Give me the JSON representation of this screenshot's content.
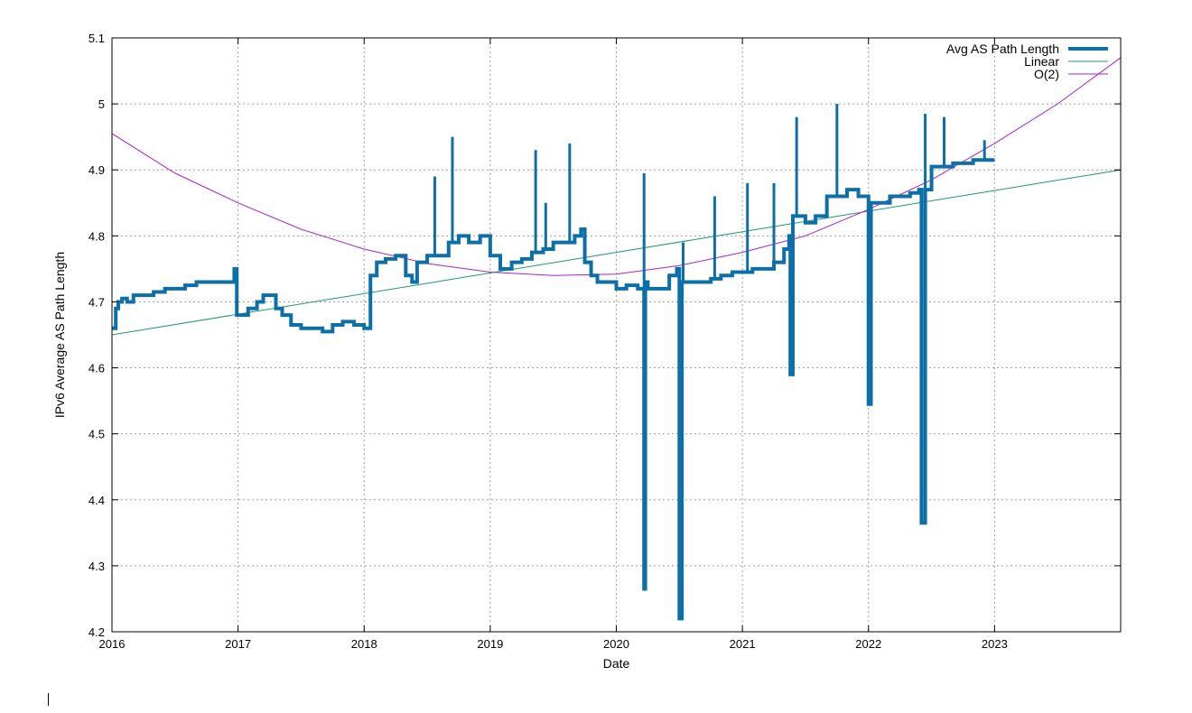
{
  "chart_data": {
    "type": "line",
    "xlabel": "Date",
    "ylabel": "IPv6 Average AS Path Length",
    "xlim": [
      2016,
      2024
    ],
    "ylim": [
      4.2,
      5.1
    ],
    "x_ticks": [
      "2016",
      "2017",
      "2018",
      "2019",
      "2020",
      "2021",
      "2022",
      "2023"
    ],
    "y_ticks": [
      "4.2",
      "4.3",
      "4.4",
      "4.5",
      "4.6",
      "4.7",
      "4.8",
      "4.9",
      "5",
      "5.1"
    ],
    "grid": true,
    "legend_position": "top-right",
    "series": [
      {
        "name": "Avg AS Path Length",
        "color": "#0d6fa8",
        "x": [
          2016.0,
          2016.03,
          2016.05,
          2016.08,
          2016.12,
          2016.17,
          2016.25,
          2016.33,
          2016.42,
          2016.5,
          2016.58,
          2016.67,
          2016.75,
          2016.83,
          2016.92,
          2016.97,
          2016.99,
          2017.02,
          2017.08,
          2017.15,
          2017.2,
          2017.25,
          2017.3,
          2017.35,
          2017.42,
          2017.5,
          2017.58,
          2017.67,
          2017.75,
          2017.83,
          2017.92,
          2018.0,
          2018.05,
          2018.1,
          2018.17,
          2018.25,
          2018.33,
          2018.38,
          2018.42,
          2018.5,
          2018.58,
          2018.67,
          2018.75,
          2018.83,
          2018.92,
          2019.0,
          2019.08,
          2019.17,
          2019.25,
          2019.33,
          2019.42,
          2019.5,
          2019.58,
          2019.67,
          2019.72,
          2019.75,
          2019.8,
          2019.85,
          2019.92,
          2020.0,
          2020.08,
          2020.17,
          2020.2,
          2020.22,
          2020.23,
          2020.25,
          2020.33,
          2020.42,
          2020.48,
          2020.5,
          2020.52,
          2020.58,
          2020.67,
          2020.75,
          2020.83,
          2020.92,
          2021.0,
          2021.08,
          2021.17,
          2021.25,
          2021.33,
          2021.37,
          2021.38,
          2021.4,
          2021.42,
          2021.5,
          2021.58,
          2021.67,
          2021.75,
          2021.83,
          2021.92,
          2021.99,
          2022.0,
          2022.02,
          2022.08,
          2022.17,
          2022.25,
          2022.33,
          2022.4,
          2022.42,
          2022.45,
          2022.5,
          2022.58,
          2022.67,
          2022.75,
          2022.83,
          2022.92,
          2023.0
        ],
        "values": [
          4.66,
          4.69,
          4.7,
          4.705,
          4.7,
          4.71,
          4.71,
          4.715,
          4.72,
          4.72,
          4.725,
          4.73,
          4.73,
          4.73,
          4.73,
          4.75,
          4.68,
          4.68,
          4.69,
          4.7,
          4.71,
          4.71,
          4.69,
          4.68,
          4.665,
          4.66,
          4.66,
          4.655,
          4.665,
          4.67,
          4.665,
          4.66,
          4.74,
          4.76,
          4.765,
          4.77,
          4.74,
          4.73,
          4.76,
          4.77,
          4.77,
          4.79,
          4.8,
          4.79,
          4.8,
          4.77,
          4.75,
          4.76,
          4.765,
          4.775,
          4.78,
          4.79,
          4.79,
          4.8,
          4.81,
          4.76,
          4.74,
          4.73,
          4.73,
          4.72,
          4.725,
          4.72,
          4.72,
          4.265,
          4.73,
          4.72,
          4.72,
          4.74,
          4.75,
          4.22,
          4.73,
          4.73,
          4.73,
          4.735,
          4.74,
          4.745,
          4.745,
          4.75,
          4.75,
          4.76,
          4.78,
          4.8,
          4.59,
          4.83,
          4.83,
          4.82,
          4.83,
          4.86,
          4.86,
          4.87,
          4.86,
          4.86,
          4.545,
          4.85,
          4.85,
          4.86,
          4.86,
          4.865,
          4.87,
          4.365,
          4.87,
          4.905,
          4.905,
          4.91,
          4.91,
          4.915,
          4.915,
          4.915
        ]
      },
      {
        "name": "Linear",
        "color": "#1a9970",
        "x": [
          2016,
          2024
        ],
        "values": [
          4.65,
          4.9
        ]
      },
      {
        "name": "O(2)",
        "color": "#a620d8",
        "x": [
          2016,
          2016.5,
          2017,
          2017.5,
          2018,
          2018.5,
          2019,
          2019.5,
          2020,
          2020.5,
          2021,
          2021.5,
          2022,
          2022.5,
          2023,
          2023.5,
          2024
        ],
        "values": [
          4.955,
          4.895,
          4.85,
          4.81,
          4.78,
          4.758,
          4.745,
          4.74,
          4.742,
          4.755,
          4.775,
          4.8,
          4.84,
          4.885,
          4.94,
          5.0,
          5.07
        ]
      }
    ],
    "spikes": [
      {
        "x": 2018.56,
        "value": 4.89
      },
      {
        "x": 2018.7,
        "value": 4.95
      },
      {
        "x": 2019.36,
        "value": 4.93
      },
      {
        "x": 2019.44,
        "value": 4.85
      },
      {
        "x": 2019.63,
        "value": 4.94
      },
      {
        "x": 2020.22,
        "value": 4.895
      },
      {
        "x": 2020.53,
        "value": 4.79
      },
      {
        "x": 2020.78,
        "value": 4.86
      },
      {
        "x": 2021.04,
        "value": 4.88
      },
      {
        "x": 2021.25,
        "value": 4.88
      },
      {
        "x": 2021.43,
        "value": 4.98
      },
      {
        "x": 2021.75,
        "value": 5.0
      },
      {
        "x": 2022.45,
        "value": 4.985
      },
      {
        "x": 2022.6,
        "value": 4.98
      },
      {
        "x": 2022.92,
        "value": 4.945
      }
    ]
  }
}
